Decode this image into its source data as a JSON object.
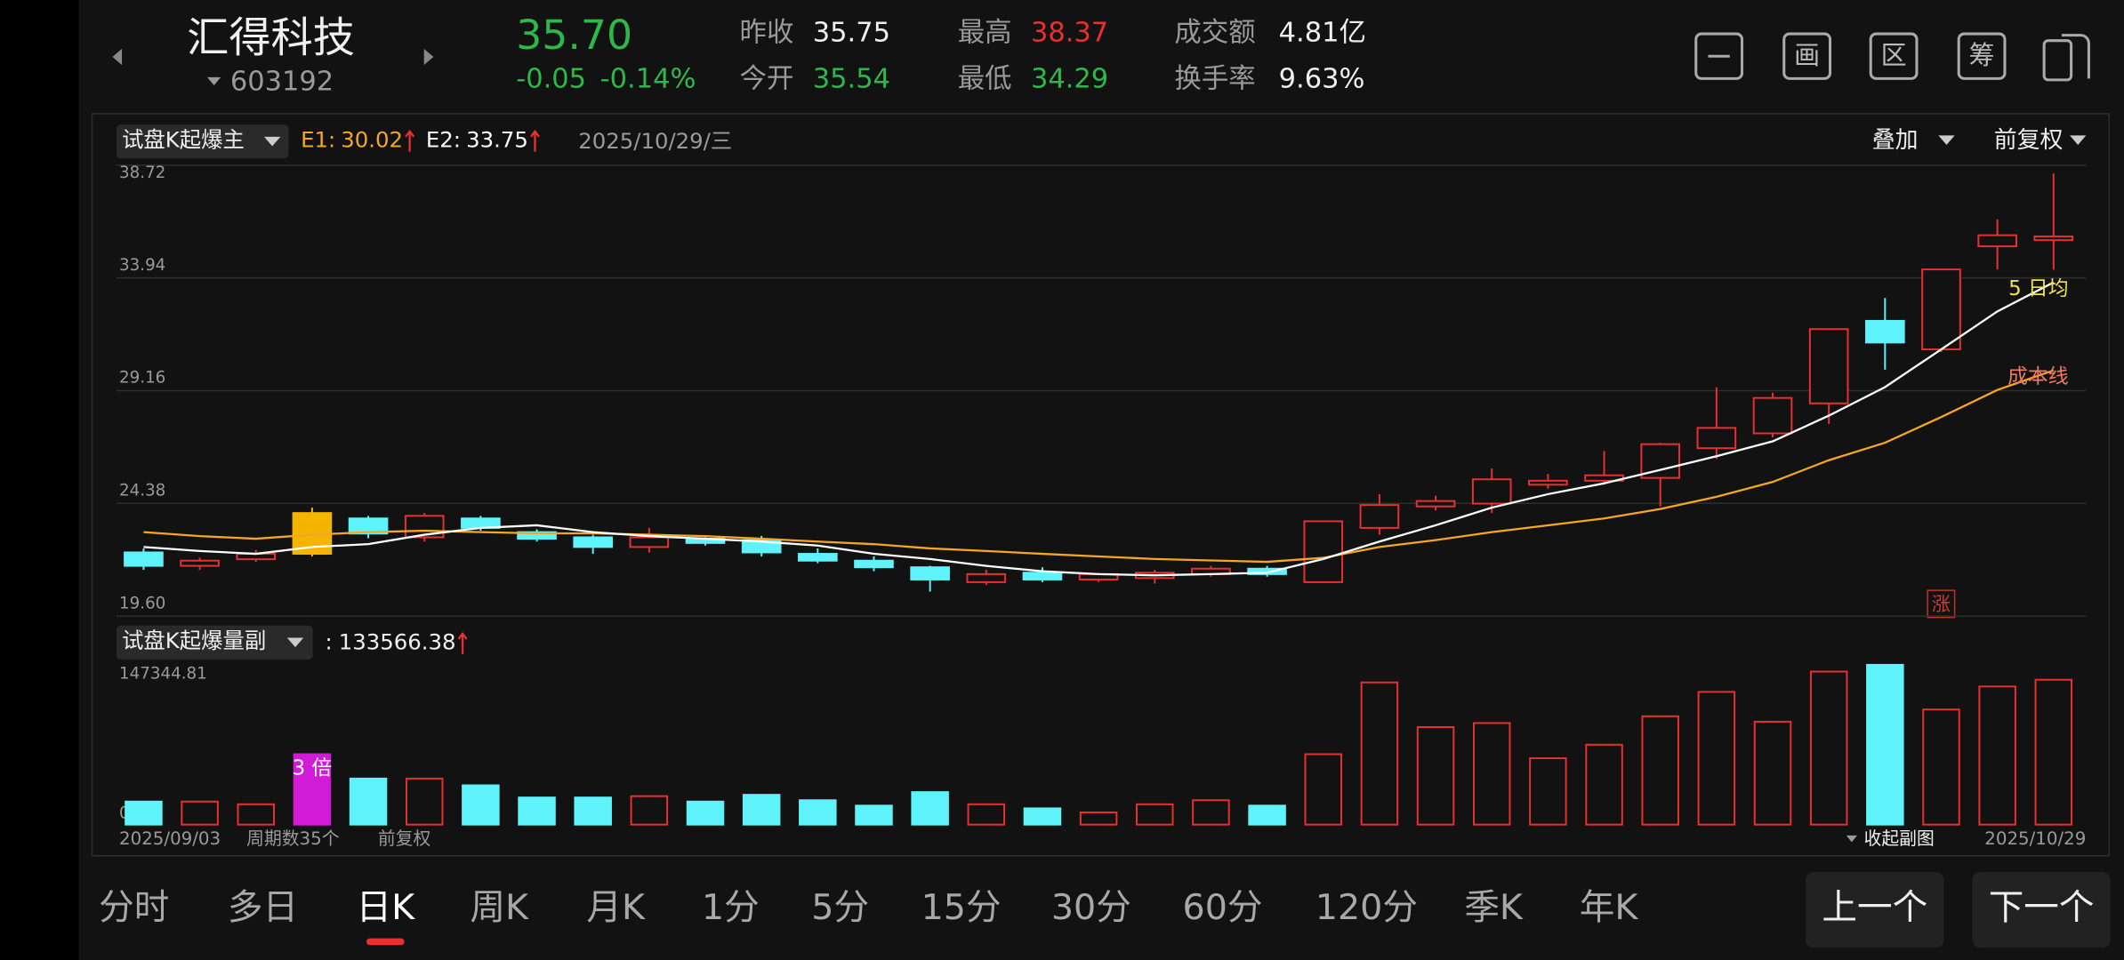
{
  "header": {
    "name": "汇得科技",
    "code": "603192",
    "price": "35.70",
    "change": "-0.05",
    "change_pct": "-0.14%",
    "stats": [
      {
        "label": "昨收",
        "value": "35.75"
      },
      {
        "label": "今开",
        "value": "35.54"
      },
      {
        "label": "最高",
        "value": "38.37"
      },
      {
        "label": "最低",
        "value": "34.29"
      },
      {
        "label": "成交额",
        "value": "4.81亿"
      },
      {
        "label": "换手率",
        "value": "9.63%"
      }
    ],
    "tools": [
      "画",
      "区",
      "筹"
    ]
  },
  "indicator": {
    "main": "试盘K起爆主",
    "date": "2025/10/29/三",
    "overlay": "叠加",
    "adjust": "前复权",
    "stamp": "涨",
    "sub": "试盘K起爆量副",
    "sub_prefix": ":"
  },
  "chart_data": [
    {
      "type": "candlestick",
      "open": [
        22.3,
        21.73,
        22.01,
        22.24,
        23.74,
        22.94,
        23.74,
        23.16,
        22.94,
        22.53,
        22.88,
        22.82,
        22.24,
        21.95,
        21.67,
        21.04,
        21.44,
        21.15,
        21.21,
        21.38,
        21.61,
        21.04,
        23.34,
        24.25,
        24.37,
        25.17,
        25.34,
        25.46,
        26.72,
        27.35,
        28.62,
        32.12,
        30.91,
        35.28,
        35.54
      ],
      "high": [
        22.47,
        22.07,
        22.4,
        24.2,
        23.85,
        23.97,
        23.85,
        23.28,
        23.05,
        23.34,
        22.94,
        23.0,
        22.47,
        22.13,
        21.73,
        21.56,
        21.67,
        21.44,
        21.56,
        21.73,
        21.73,
        23.62,
        24.77,
        24.71,
        25.86,
        25.63,
        26.6,
        26.95,
        29.3,
        29.07,
        31.77,
        33.09,
        34.3,
        36.42,
        38.37
      ],
      "low": [
        21.56,
        21.56,
        21.9,
        22.13,
        22.9,
        22.76,
        23.22,
        22.76,
        22.24,
        22.3,
        22.59,
        22.13,
        21.84,
        21.5,
        20.64,
        20.92,
        21.04,
        21.04,
        20.98,
        21.27,
        21.27,
        21.04,
        23.05,
        24.08,
        23.97,
        25.0,
        25.17,
        24.25,
        26.26,
        27.18,
        27.75,
        30.05,
        30.8,
        34.3,
        34.29
      ],
      "close": [
        21.73,
        21.95,
        22.24,
        23.97,
        23.1,
        23.85,
        23.34,
        22.88,
        22.53,
        22.94,
        22.7,
        22.3,
        21.95,
        21.67,
        21.15,
        21.38,
        21.15,
        21.38,
        21.44,
        21.61,
        21.38,
        23.62,
        24.31,
        24.48,
        25.4,
        25.34,
        25.57,
        26.89,
        27.58,
        28.85,
        31.77,
        31.2,
        34.3,
        35.75,
        35.7
      ],
      "up_color": "#e8312f",
      "down_color": "#5ef3fb",
      "highlight": {
        "index": 3,
        "color": "#f5b400"
      },
      "series": [
        {
          "name": "E1:",
          "label": "成本线",
          "color": "#f5a623",
          "label_color": "#f07a63",
          "values": [
            23.16,
            22.99,
            22.88,
            23.05,
            23.16,
            23.22,
            23.16,
            23.11,
            23.11,
            23.05,
            22.99,
            22.88,
            22.76,
            22.65,
            22.47,
            22.36,
            22.24,
            22.13,
            22.02,
            21.96,
            21.9,
            22.07,
            22.53,
            22.82,
            23.16,
            23.45,
            23.74,
            24.14,
            24.66,
            25.29,
            26.21,
            26.95,
            28.04,
            29.19,
            30.02
          ]
        },
        {
          "name": "E2:",
          "label": "5 日均",
          "color": "#ffffff",
          "label_color": "#f2e24a",
          "values": [
            22.53,
            22.36,
            22.24,
            22.53,
            22.65,
            23.05,
            23.34,
            23.45,
            23.16,
            22.99,
            22.88,
            22.76,
            22.59,
            22.24,
            22.02,
            21.73,
            21.5,
            21.38,
            21.33,
            21.38,
            21.44,
            22.02,
            22.76,
            23.45,
            24.2,
            24.77,
            25.23,
            25.8,
            26.38,
            27.01,
            28.1,
            29.31,
            30.91,
            32.52,
            33.75
          ]
        }
      ],
      "ylim": [
        19.6,
        38.72
      ],
      "yticks": [
        38.72,
        33.94,
        29.16,
        24.38,
        {
          "value": 19.6,
          "label": "19.60"
        }
      ],
      "grid": true
    },
    {
      "type": "bar",
      "categories": [
        "2025/09/03",
        null,
        null,
        null,
        null,
        null,
        null,
        null,
        null,
        null,
        null,
        null,
        null,
        null,
        null,
        null,
        null,
        null,
        null,
        null,
        null,
        null,
        null,
        null,
        null,
        null,
        null,
        null,
        null,
        null,
        null,
        null,
        null,
        null,
        "2025/10/29"
      ],
      "values": [
        21230,
        21230,
        18730,
        64930,
        42460,
        42460,
        36210,
        24970,
        24970,
        26220,
        21230,
        27470,
        22480,
        17480,
        29970,
        18730,
        14980,
        11240,
        18730,
        22480,
        17480,
        64930,
        131110,
        89910,
        93650,
        61190,
        73670,
        99900,
        122370,
        94900,
        141100,
        147344.81,
        106140,
        127370,
        133566.38
      ],
      "highlight": {
        "index": 3,
        "color": "#d21bd6",
        "text": "3 倍"
      },
      "ylim": [
        0,
        147344.81
      ],
      "yticks": [
        {
          "value": 0,
          "label": "0.00"
        },
        147344.81
      ],
      "grid": false
    }
  ],
  "footer": {
    "period": "周期数35个",
    "adjust": "前复权",
    "collapse": "收起副图"
  },
  "tabs": [
    "分时",
    "多日",
    "日K",
    "周K",
    "月K",
    "1分",
    "5分",
    "15分",
    "30分",
    "60分",
    "120分",
    "季K",
    "年K"
  ],
  "active_tab": 2,
  "buttons": [
    "上一个",
    "下一个"
  ]
}
